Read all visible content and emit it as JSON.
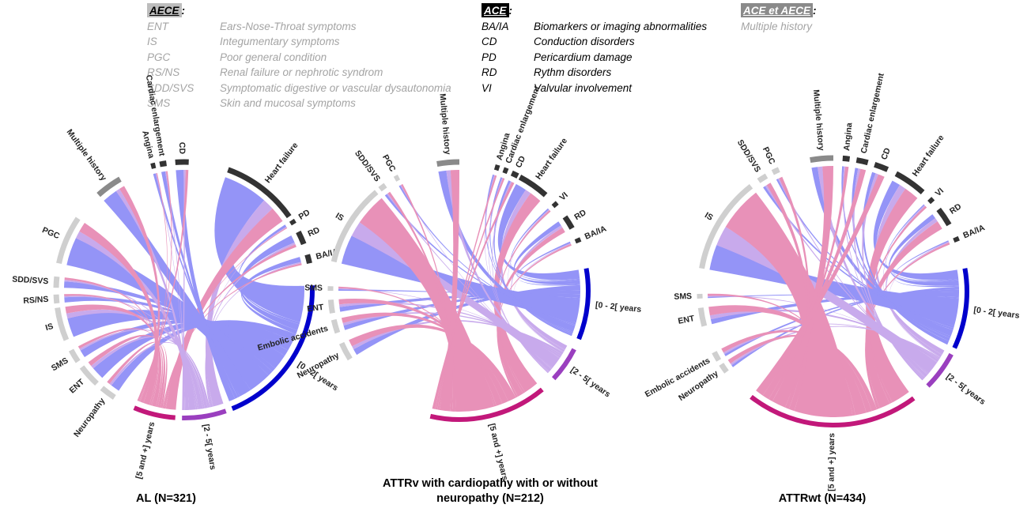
{
  "legend": {
    "aece": {
      "heading": "AECE",
      "colon": ":",
      "items": [
        {
          "abbr": "ENT",
          "text": "Ears-Nose-Throat symptoms"
        },
        {
          "abbr": "IS",
          "text": "Integumentary symptoms"
        },
        {
          "abbr": "PGC",
          "text": "Poor general condition"
        },
        {
          "abbr": "RS/NS",
          "text": "Renal failure or nephrotic syndrom"
        },
        {
          "abbr": "SDD/SVS",
          "text": "Symptomatic digestive or vascular dysautonomia"
        },
        {
          "abbr": "SMS",
          "text": "Skin and mucosal symptoms"
        }
      ]
    },
    "ace": {
      "heading": "ACE",
      "colon": ":",
      "items": [
        {
          "abbr": "BA/IA",
          "text": "Biomarkers or imaging abnormalities"
        },
        {
          "abbr": "CD",
          "text": "Conduction disorders"
        },
        {
          "abbr": "PD",
          "text": "Pericardium damage"
        },
        {
          "abbr": "RD",
          "text": "Rythm disorders"
        },
        {
          "abbr": "VI",
          "text": "Valvular involvement"
        }
      ]
    },
    "both": {
      "heading": "ACE et AECE",
      "colon": ":",
      "items": [
        {
          "text": "Multiple history"
        }
      ]
    }
  },
  "colors": {
    "ace_arc": "#333333",
    "aece_arc": "#cfcfcf",
    "multiple_arc": "#8a8a8a",
    "period_0_2": "#0000cc",
    "period_2_5": "#9a3fbf",
    "period_5_plus": "#c2187a",
    "chord_0_2": "#6b6bf5",
    "chord_2_5": "#b48ae6",
    "chord_5_plus": "#e0679e"
  },
  "diagrams": [
    {
      "caption": "AL (N=321)",
      "sectors": [
        {
          "label": "Heart failure",
          "kind": "ace"
        },
        {
          "label": "PD",
          "kind": "ace"
        },
        {
          "label": "RD",
          "kind": "ace"
        },
        {
          "label": "BA/IA",
          "kind": "ace"
        },
        {
          "label": "[0 - 2[ years",
          "kind": "period"
        },
        {
          "label": "[2 - 5[ years",
          "kind": "period"
        },
        {
          "label": "[5 and +] years",
          "kind": "period"
        },
        {
          "label": "Neuropathy",
          "kind": "aece"
        },
        {
          "label": "ENT",
          "kind": "aece"
        },
        {
          "label": "SMS",
          "kind": "aece"
        },
        {
          "label": "IS",
          "kind": "aece"
        },
        {
          "label": "RS/NS",
          "kind": "aece"
        },
        {
          "label": "SDD/SVS",
          "kind": "aece"
        },
        {
          "label": "PGC",
          "kind": "aece"
        },
        {
          "label": "Multiple history",
          "kind": "multiple"
        },
        {
          "label": "Angina",
          "kind": "ace"
        },
        {
          "label": "Cardiac enlargement",
          "kind": "ace"
        },
        {
          "label": "CD",
          "kind": "ace"
        }
      ]
    },
    {
      "caption": "ATTRv with cardiopathy  with or without neuropathy (N=212)",
      "sectors": [
        {
          "label": "Heart failure",
          "kind": "ace"
        },
        {
          "label": "VI",
          "kind": "ace"
        },
        {
          "label": "RD",
          "kind": "ace"
        },
        {
          "label": "BA/IA",
          "kind": "ace"
        },
        {
          "label": "[0 - 2[ years",
          "kind": "period"
        },
        {
          "label": "[2 - 5[ years",
          "kind": "period"
        },
        {
          "label": "[5 and +] years",
          "kind": "period"
        },
        {
          "label": "Neuropathy",
          "kind": "aece"
        },
        {
          "label": "Embolic accidents",
          "kind": "aece"
        },
        {
          "label": "ENT",
          "kind": "aece"
        },
        {
          "label": "SMS",
          "kind": "aece"
        },
        {
          "label": "IS",
          "kind": "aece"
        },
        {
          "label": "SDD/SVS",
          "kind": "aece"
        },
        {
          "label": "PGC",
          "kind": "aece"
        },
        {
          "label": "Multiple history",
          "kind": "multiple"
        },
        {
          "label": "Angina",
          "kind": "ace"
        },
        {
          "label": "Cardiac enlargement",
          "kind": "ace"
        },
        {
          "label": "CD",
          "kind": "ace"
        }
      ]
    },
    {
      "caption": "ATTRwt (N=434)",
      "sectors": [
        {
          "label": "Heart failure",
          "kind": "ace"
        },
        {
          "label": "VI",
          "kind": "ace"
        },
        {
          "label": "RD",
          "kind": "ace"
        },
        {
          "label": "BA/IA",
          "kind": "ace"
        },
        {
          "label": "[0 - 2[ years",
          "kind": "period"
        },
        {
          "label": "[2 - 5[ years",
          "kind": "period"
        },
        {
          "label": "[5 and +] years",
          "kind": "period"
        },
        {
          "label": "Neuropathy",
          "kind": "aece"
        },
        {
          "label": "Embolic accidents",
          "kind": "aece"
        },
        {
          "label": "ENT",
          "kind": "aece"
        },
        {
          "label": "SMS",
          "kind": "aece"
        },
        {
          "label": "IS",
          "kind": "aece"
        },
        {
          "label": "SDD/SVS",
          "kind": "aece"
        },
        {
          "label": "PGC",
          "kind": "aece"
        },
        {
          "label": "Multiple history",
          "kind": "multiple"
        },
        {
          "label": "Angina",
          "kind": "ace"
        },
        {
          "label": "Cardiac enlargement",
          "kind": "ace"
        },
        {
          "label": "CD",
          "kind": "ace"
        }
      ]
    }
  ]
}
